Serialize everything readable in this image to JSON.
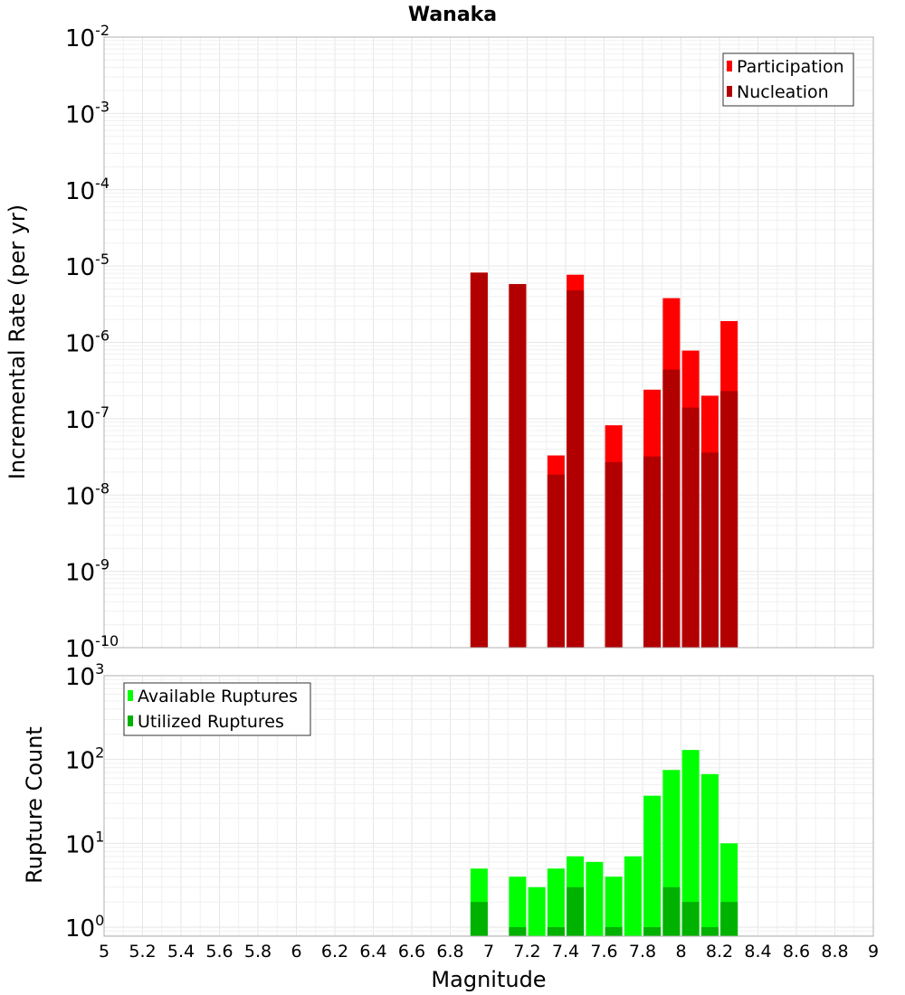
{
  "chart_data": [
    {
      "type": "bar",
      "title": "Wanaka",
      "ylabel": "Incremental Rate (per yr)",
      "xlabel": "",
      "yscale": "log",
      "xlim": [
        5,
        9
      ],
      "ylim": [
        1e-10,
        0.01
      ],
      "grid": true,
      "legend_position": "top-right",
      "x": [
        6.95,
        7.15,
        7.35,
        7.45,
        7.65,
        7.85,
        7.95,
        8.05,
        8.15,
        8.25
      ],
      "series": [
        {
          "name": "Participation",
          "color": "#ff0000",
          "values": [
            8.2e-06,
            5.8e-06,
            3.3e-08,
            7.7e-06,
            8.2e-08,
            2.4e-07,
            3.8e-06,
            7.8e-07,
            2e-07,
            1.9e-06
          ]
        },
        {
          "name": "Nucleation",
          "color": "#b20000",
          "values": [
            8.2e-06,
            5.8e-06,
            1.85e-08,
            4.8e-06,
            2.7e-08,
            3.2e-08,
            4.4e-07,
            1.4e-07,
            3.6e-08,
            2.3e-07
          ]
        }
      ],
      "y_tick_labels": [
        {
          "base": "10",
          "exp": "-10"
        },
        {
          "base": "10",
          "exp": "-9"
        },
        {
          "base": "10",
          "exp": "-8"
        },
        {
          "base": "10",
          "exp": "-7"
        },
        {
          "base": "10",
          "exp": "-6"
        },
        {
          "base": "10",
          "exp": "-5"
        },
        {
          "base": "10",
          "exp": "-4"
        },
        {
          "base": "10",
          "exp": "-3"
        },
        {
          "base": "10",
          "exp": "-2"
        }
      ]
    },
    {
      "type": "bar",
      "title": "",
      "ylabel": "Rupture Count",
      "xlabel": "Magnitude",
      "yscale": "log",
      "xlim": [
        5,
        9
      ],
      "ylim": [
        0.78,
        1000
      ],
      "grid": true,
      "legend_position": "top-left",
      "x": [
        6.95,
        7.15,
        7.25,
        7.35,
        7.45,
        7.55,
        7.65,
        7.75,
        7.85,
        7.95,
        8.05,
        8.15,
        8.25
      ],
      "series": [
        {
          "name": "Available Ruptures",
          "color": "#00ff00",
          "values": [
            5,
            4,
            3,
            5,
            7,
            6,
            4,
            7,
            37,
            75,
            130,
            67,
            10
          ]
        },
        {
          "name": "Utilized Ruptures",
          "color": "#00b200",
          "values": [
            2,
            1,
            null,
            1,
            3,
            null,
            1,
            null,
            1,
            3,
            2,
            1,
            2
          ]
        }
      ],
      "y_tick_labels": [
        {
          "base": "10",
          "exp": "0"
        },
        {
          "base": "10",
          "exp": "1"
        },
        {
          "base": "10",
          "exp": "2"
        },
        {
          "base": "10",
          "exp": "3"
        }
      ],
      "x_tick_labels": [
        "5",
        "5.2",
        "5.4",
        "5.6",
        "5.8",
        "6",
        "6.2",
        "6.4",
        "6.6",
        "6.8",
        "7",
        "7.2",
        "7.4",
        "7.6",
        "7.8",
        "8",
        "8.2",
        "8.4",
        "8.6",
        "8.8",
        "9"
      ]
    }
  ]
}
